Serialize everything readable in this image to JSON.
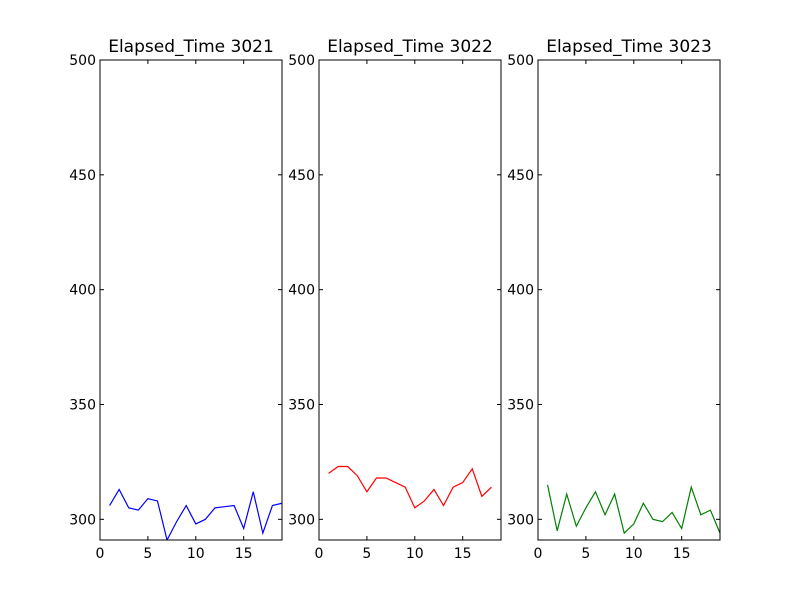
{
  "chart_data": [
    {
      "type": "line",
      "title": "Elapsed_Time 3021",
      "xlabel": "",
      "ylabel": "",
      "xlim": [
        0,
        19
      ],
      "ylim": [
        291,
        500
      ],
      "x_ticks": [
        0,
        5,
        10,
        15
      ],
      "y_ticks": [
        300,
        350,
        400,
        450,
        500
      ],
      "grid": false,
      "color": "#0000ff",
      "series": [
        {
          "x": [
            1,
            2,
            3,
            4,
            5,
            6,
            7,
            8,
            9,
            10,
            11,
            12,
            13,
            14,
            15,
            16,
            17,
            18,
            19
          ],
          "y": [
            306,
            313,
            305,
            304,
            309,
            308,
            291,
            299,
            306,
            298,
            300,
            305,
            305.5,
            306,
            296,
            312,
            294,
            306,
            307
          ]
        }
      ]
    },
    {
      "type": "line",
      "title": "Elapsed_Time 3022",
      "xlabel": "",
      "ylabel": "",
      "xlim": [
        0,
        19
      ],
      "ylim": [
        291,
        500
      ],
      "x_ticks": [
        0,
        5,
        10,
        15
      ],
      "y_ticks": [
        300,
        350,
        400,
        450,
        500
      ],
      "grid": false,
      "color": "#ff0000",
      "series": [
        {
          "x": [
            1,
            2,
            3,
            4,
            5,
            6,
            7,
            8,
            9,
            10,
            11,
            12,
            13,
            14,
            15,
            16,
            17,
            18
          ],
          "y": [
            320,
            323,
            323,
            319,
            312,
            318,
            318,
            316,
            314,
            305,
            308,
            313,
            306,
            314,
            316,
            322,
            310,
            314
          ]
        }
      ]
    },
    {
      "type": "line",
      "title": "Elapsed_Time 3023",
      "xlabel": "",
      "ylabel": "",
      "xlim": [
        0,
        19
      ],
      "ylim": [
        291,
        500
      ],
      "x_ticks": [
        0,
        5,
        10,
        15
      ],
      "y_ticks": [
        300,
        350,
        400,
        450,
        500
      ],
      "grid": false,
      "color": "#008000",
      "series": [
        {
          "x": [
            1,
            2,
            3,
            4,
            5,
            6,
            7,
            8,
            9,
            10,
            11,
            12,
            13,
            14,
            15,
            16,
            17,
            18,
            19
          ],
          "y": [
            315,
            295,
            311,
            297,
            305,
            312,
            302,
            311,
            294,
            298,
            307,
            300,
            299,
            303,
            296,
            314,
            302,
            304,
            294
          ]
        }
      ]
    }
  ]
}
